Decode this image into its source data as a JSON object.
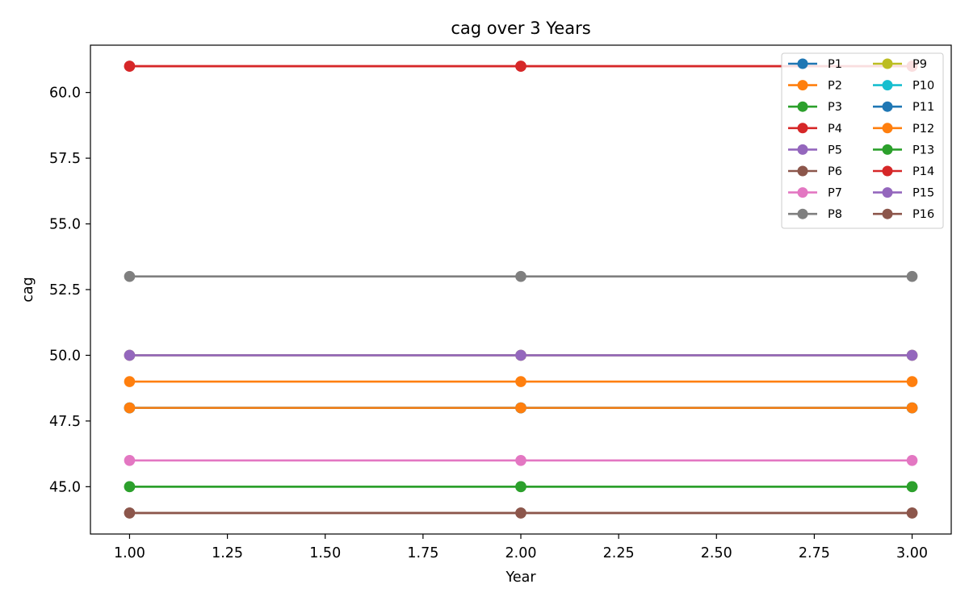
{
  "chart_data": {
    "type": "line",
    "title": "cag over 3 Years",
    "xlabel": "Year",
    "ylabel": "cag",
    "x": [
      1,
      2,
      3
    ],
    "xlim": [
      0.9,
      3.1
    ],
    "ylim": [
      43.2,
      61.8
    ],
    "xticks": [
      "1.00",
      "1.25",
      "1.50",
      "1.75",
      "2.00",
      "2.25",
      "2.50",
      "2.75",
      "3.00"
    ],
    "yticks": [
      "45.0",
      "47.5",
      "50.0",
      "52.5",
      "55.0",
      "57.5",
      "60.0"
    ],
    "grid": false,
    "legend_position": "top-right",
    "legend_columns": 2,
    "series": [
      {
        "name": "P1",
        "color": "#1f77b4",
        "values": [
          48,
          48,
          48
        ]
      },
      {
        "name": "P2",
        "color": "#ff7f0e",
        "values": [
          49,
          49,
          49
        ]
      },
      {
        "name": "P3",
        "color": "#2ca02c",
        "values": [
          45,
          45,
          45
        ]
      },
      {
        "name": "P4",
        "color": "#d62728",
        "values": [
          61,
          61,
          61
        ]
      },
      {
        "name": "P5",
        "color": "#9467bd",
        "values": [
          50,
          50,
          50
        ]
      },
      {
        "name": "P6",
        "color": "#8c564b",
        "values": [
          44,
          44,
          44
        ]
      },
      {
        "name": "P7",
        "color": "#e377c2",
        "values": [
          46,
          46,
          46
        ]
      },
      {
        "name": "P8",
        "color": "#7f7f7f",
        "values": [
          53,
          53,
          53
        ]
      },
      {
        "name": "P9",
        "color": "#bcbd22",
        "values": [
          50,
          50,
          50
        ]
      },
      {
        "name": "P10",
        "color": "#17becf",
        "values": [
          48,
          48,
          48
        ]
      },
      {
        "name": "P11",
        "color": "#1f77b4",
        "values": [
          48,
          48,
          48
        ]
      },
      {
        "name": "P12",
        "color": "#ff7f0e",
        "values": [
          48,
          48,
          48
        ]
      },
      {
        "name": "P13",
        "color": "#2ca02c",
        "values": [
          45,
          45,
          45
        ]
      },
      {
        "name": "P14",
        "color": "#d62728",
        "values": [
          61,
          61,
          61
        ]
      },
      {
        "name": "P15",
        "color": "#9467bd",
        "values": [
          50,
          50,
          50
        ]
      },
      {
        "name": "P16",
        "color": "#8c564b",
        "values": [
          44,
          44,
          44
        ]
      }
    ]
  }
}
